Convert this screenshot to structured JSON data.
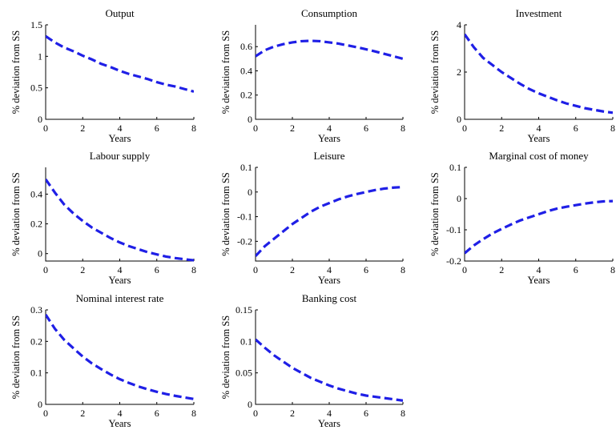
{
  "figure": {
    "style": {
      "line_color": "#1f1fe6",
      "background": "#ffffff"
    }
  },
  "chart_data": [
    {
      "type": "line",
      "title": "Output",
      "xlabel": "Years",
      "ylabel": "% deviation from SS",
      "xlim": [
        0,
        8
      ],
      "ylim": [
        0,
        1.5
      ],
      "xticks": [
        0,
        2,
        4,
        6,
        8
      ],
      "xtick_labels": [
        "0",
        "2",
        "4",
        "6",
        "8"
      ],
      "yticks": [
        0,
        0.5,
        1,
        1.5
      ],
      "ytick_labels": [
        "0",
        "0.5",
        "1",
        "1.5"
      ],
      "grid": false,
      "series": [
        {
          "x": [
            0,
            0.5,
            1,
            1.5,
            2,
            2.5,
            3,
            3.5,
            4,
            4.5,
            5,
            5.5,
            6,
            6.5,
            7,
            7.5,
            8
          ],
          "y": [
            1.32,
            1.22,
            1.14,
            1.08,
            1.01,
            0.95,
            0.88,
            0.83,
            0.77,
            0.72,
            0.68,
            0.64,
            0.59,
            0.55,
            0.52,
            0.48,
            0.44
          ]
        }
      ]
    },
    {
      "type": "line",
      "title": "Consumption",
      "xlabel": "Years",
      "ylabel": "% deviation from SS",
      "xlim": [
        0,
        8
      ],
      "ylim": [
        0,
        0.78
      ],
      "xticks": [
        0,
        2,
        4,
        6,
        8
      ],
      "xtick_labels": [
        "0",
        "2",
        "4",
        "6",
        "8"
      ],
      "yticks": [
        0,
        0.2,
        0.4,
        0.6
      ],
      "ytick_labels": [
        "0",
        "0.2",
        "0.4",
        "0.6"
      ],
      "grid": false,
      "series": [
        {
          "x": [
            0,
            0.5,
            1,
            1.5,
            2,
            2.5,
            3,
            3.5,
            4,
            4.5,
            5,
            5.5,
            6,
            6.5,
            7,
            7.5,
            8
          ],
          "y": [
            0.52,
            0.57,
            0.6,
            0.62,
            0.635,
            0.645,
            0.648,
            0.645,
            0.635,
            0.625,
            0.61,
            0.595,
            0.578,
            0.56,
            0.54,
            0.52,
            0.5
          ]
        }
      ]
    },
    {
      "type": "line",
      "title": "Investment",
      "xlabel": "Years",
      "ylabel": "% deviation from SS",
      "xlim": [
        0,
        8
      ],
      "ylim": [
        0,
        4
      ],
      "xticks": [
        0,
        2,
        4,
        6,
        8
      ],
      "xtick_labels": [
        "0",
        "2",
        "4",
        "6",
        "8"
      ],
      "yticks": [
        0,
        2,
        4
      ],
      "ytick_labels": [
        "0",
        "2",
        "4"
      ],
      "grid": false,
      "series": [
        {
          "x": [
            0,
            0.5,
            1,
            1.5,
            2,
            2.5,
            3,
            3.5,
            4,
            4.5,
            5,
            5.5,
            6,
            6.5,
            7,
            7.5,
            8
          ],
          "y": [
            3.6,
            3.05,
            2.6,
            2.3,
            2.0,
            1.75,
            1.5,
            1.28,
            1.1,
            0.95,
            0.8,
            0.67,
            0.57,
            0.47,
            0.4,
            0.33,
            0.28
          ]
        }
      ]
    },
    {
      "type": "line",
      "title": "Labour supply",
      "xlabel": "Years",
      "ylabel": "% deviation from SS",
      "xlim": [
        0,
        8
      ],
      "ylim": [
        -0.05,
        0.58
      ],
      "xticks": [
        0,
        2,
        4,
        6,
        8
      ],
      "xtick_labels": [
        "0",
        "2",
        "4",
        "6",
        "8"
      ],
      "yticks": [
        0,
        0.2,
        0.4
      ],
      "ytick_labels": [
        "0",
        "0.2",
        "0.4"
      ],
      "grid": false,
      "series": [
        {
          "x": [
            0,
            0.5,
            1,
            1.5,
            2,
            2.5,
            3,
            3.5,
            4,
            4.5,
            5,
            5.5,
            6,
            6.5,
            7,
            7.5,
            8
          ],
          "y": [
            0.5,
            0.41,
            0.33,
            0.27,
            0.22,
            0.175,
            0.14,
            0.105,
            0.075,
            0.05,
            0.03,
            0.01,
            -0.005,
            -0.02,
            -0.03,
            -0.038,
            -0.045
          ]
        }
      ]
    },
    {
      "type": "line",
      "title": "Leisure",
      "xlabel": "Years",
      "ylabel": "% deviation from SS",
      "xlim": [
        0,
        8
      ],
      "ylim": [
        -0.28,
        0.1
      ],
      "xticks": [
        0,
        2,
        4,
        6,
        8
      ],
      "xtick_labels": [
        "0",
        "2",
        "4",
        "6",
        "8"
      ],
      "yticks": [
        -0.2,
        -0.1,
        0,
        0.1
      ],
      "ytick_labels": [
        "-0.2",
        "-0.1",
        "0",
        "0.1"
      ],
      "grid": false,
      "series": [
        {
          "x": [
            0,
            0.5,
            1,
            1.5,
            2,
            2.5,
            3,
            3.5,
            4,
            4.5,
            5,
            5.5,
            6,
            6.5,
            7,
            7.5,
            8
          ],
          "y": [
            -0.26,
            -0.22,
            -0.19,
            -0.16,
            -0.13,
            -0.105,
            -0.08,
            -0.06,
            -0.045,
            -0.03,
            -0.018,
            -0.008,
            0.0,
            0.008,
            0.014,
            0.018,
            0.02
          ]
        }
      ]
    },
    {
      "type": "line",
      "title": "Marginal cost of money",
      "xlabel": "Years",
      "ylabel": "% deviation from SS",
      "xlim": [
        0,
        8
      ],
      "ylim": [
        -0.2,
        0.1
      ],
      "xticks": [
        0,
        2,
        4,
        6,
        8
      ],
      "xtick_labels": [
        "0",
        "2",
        "4",
        "6",
        "8"
      ],
      "yticks": [
        -0.2,
        -0.1,
        0,
        0.1
      ],
      "ytick_labels": [
        "-0.2",
        "-0.1",
        "0",
        "0.1"
      ],
      "grid": false,
      "series": [
        {
          "x": [
            0,
            0.5,
            1,
            1.5,
            2,
            2.5,
            3,
            3.5,
            4,
            4.5,
            5,
            5.5,
            6,
            6.5,
            7,
            7.5,
            8
          ],
          "y": [
            -0.175,
            -0.15,
            -0.13,
            -0.112,
            -0.097,
            -0.083,
            -0.07,
            -0.06,
            -0.05,
            -0.04,
            -0.032,
            -0.026,
            -0.021,
            -0.016,
            -0.012,
            -0.009,
            -0.008
          ]
        }
      ]
    },
    {
      "type": "line",
      "title": "Nominal interest rate",
      "xlabel": "Years",
      "ylabel": "% deviation from SS",
      "xlim": [
        0,
        8
      ],
      "ylim": [
        0,
        0.3
      ],
      "xticks": [
        0,
        2,
        4,
        6,
        8
      ],
      "xtick_labels": [
        "0",
        "2",
        "4",
        "6",
        "8"
      ],
      "yticks": [
        0,
        0.1,
        0.2,
        0.3
      ],
      "ytick_labels": [
        "0",
        "0.1",
        "0.2",
        "0.3"
      ],
      "grid": false,
      "series": [
        {
          "x": [
            0,
            0.5,
            1,
            1.5,
            2,
            2.5,
            3,
            3.5,
            4,
            4.5,
            5,
            5.5,
            6,
            6.5,
            7,
            7.5,
            8
          ],
          "y": [
            0.285,
            0.24,
            0.205,
            0.178,
            0.152,
            0.13,
            0.112,
            0.095,
            0.08,
            0.068,
            0.057,
            0.048,
            0.04,
            0.033,
            0.027,
            0.022,
            0.017
          ]
        }
      ]
    },
    {
      "type": "line",
      "title": "Banking cost",
      "xlabel": "Years",
      "ylabel": "% deviation from SS",
      "xlim": [
        0,
        8
      ],
      "ylim": [
        0,
        0.15
      ],
      "xticks": [
        0,
        2,
        4,
        6,
        8
      ],
      "xtick_labels": [
        "0",
        "2",
        "4",
        "6",
        "8"
      ],
      "yticks": [
        0,
        0.05,
        0.1,
        0.15
      ],
      "ytick_labels": [
        "0",
        "0.05",
        "0.1",
        "0.15"
      ],
      "grid": false,
      "series": [
        {
          "x": [
            0,
            0.5,
            1,
            1.5,
            2,
            2.5,
            3,
            3.5,
            4,
            4.5,
            5,
            5.5,
            6,
            6.5,
            7,
            7.5,
            8
          ],
          "y": [
            0.103,
            0.09,
            0.078,
            0.068,
            0.058,
            0.05,
            0.042,
            0.036,
            0.03,
            0.025,
            0.021,
            0.017,
            0.014,
            0.012,
            0.01,
            0.008,
            0.006
          ]
        }
      ]
    }
  ]
}
